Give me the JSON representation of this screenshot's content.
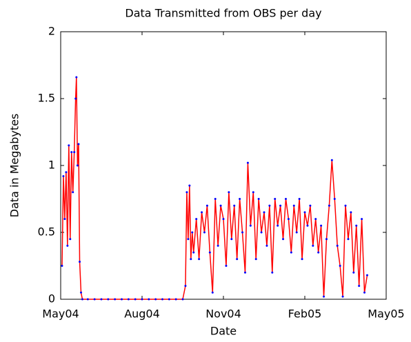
{
  "chart_data": {
    "type": "line",
    "title": "Data Transmitted from OBS per day",
    "xlabel": "Date",
    "ylabel": "Data in Megabytes",
    "x": [
      0.05,
      0.1,
      0.15,
      0.2,
      0.25,
      0.3,
      0.35,
      0.4,
      0.45,
      0.5,
      0.55,
      0.58,
      0.62,
      0.66,
      0.7,
      0.75,
      0.8,
      1,
      1.25,
      1.5,
      1.75,
      2,
      2.25,
      2.5,
      2.75,
      3,
      3.25,
      3.5,
      3.75,
      4,
      4.25,
      4.5,
      4.6,
      4.65,
      4.7,
      4.75,
      4.8,
      4.85,
      4.9,
      5.0,
      5.1,
      5.2,
      5.3,
      5.4,
      5.5,
      5.6,
      5.7,
      5.8,
      5.9,
      6.0,
      6.1,
      6.2,
      6.3,
      6.4,
      6.5,
      6.6,
      6.7,
      6.8,
      6.9,
      7.0,
      7.1,
      7.2,
      7.3,
      7.4,
      7.5,
      7.6,
      7.7,
      7.8,
      7.9,
      8.0,
      8.1,
      8.2,
      8.3,
      8.4,
      8.5,
      8.6,
      8.7,
      8.8,
      8.9,
      9.0,
      9.1,
      9.2,
      9.3,
      9.4,
      9.5,
      9.6,
      9.7,
      9.8,
      9.9,
      10.0,
      10.1,
      10.2,
      10.3,
      10.4,
      10.5,
      10.6,
      10.7,
      10.8,
      10.9,
      11.0,
      11.1,
      11.2,
      11.3
    ],
    "series": [
      {
        "color": "#ff0000",
        "marker_color": "#0000ff",
        "values": [
          0.25,
          0.92,
          0.6,
          0.95,
          0.4,
          1.15,
          0.45,
          1.1,
          0.8,
          1.1,
          1.5,
          1.66,
          1.0,
          1.16,
          0.28,
          0.05,
          0,
          0,
          0,
          0,
          0,
          0,
          0,
          0,
          0,
          0,
          0,
          0,
          0,
          0,
          0,
          0,
          0.1,
          0.8,
          0.45,
          0.85,
          0.3,
          0.5,
          0.35,
          0.6,
          0.3,
          0.65,
          0.5,
          0.7,
          0.35,
          0.05,
          0.75,
          0.4,
          0.7,
          0.6,
          0.25,
          0.8,
          0.45,
          0.7,
          0.3,
          0.75,
          0.5,
          0.2,
          1.02,
          0.55,
          0.8,
          0.3,
          0.75,
          0.5,
          0.65,
          0.4,
          0.7,
          0.2,
          0.75,
          0.55,
          0.7,
          0.45,
          0.75,
          0.6,
          0.35,
          0.7,
          0.5,
          0.75,
          0.3,
          0.65,
          0.55,
          0.7,
          0.4,
          0.6,
          0.35,
          0.55,
          0.02,
          0.45,
          0.7,
          1.04,
          0.75,
          0.4,
          0.25,
          0.02,
          0.7,
          0.45,
          0.65,
          0.2,
          0.55,
          0.1,
          0.6,
          0.05,
          0.18
        ]
      }
    ],
    "xlim": [
      0,
      12
    ],
    "xticks": [
      {
        "value": 0,
        "label": "May04"
      },
      {
        "value": 3,
        "label": "Aug04"
      },
      {
        "value": 6,
        "label": "Nov04"
      },
      {
        "value": 9,
        "label": "Feb05"
      },
      {
        "value": 12,
        "label": "May05"
      }
    ],
    "ylim": [
      0,
      2
    ],
    "yticks": [
      0,
      0.5,
      1,
      1.5,
      2
    ]
  }
}
